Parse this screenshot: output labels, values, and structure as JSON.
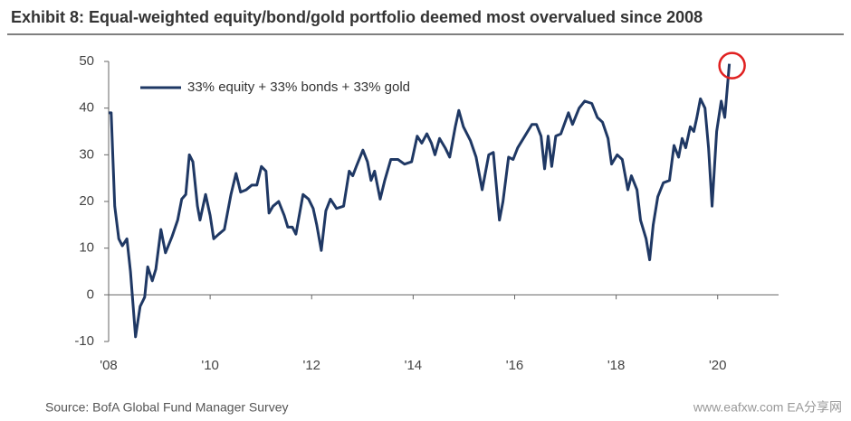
{
  "chart_data": {
    "type": "line",
    "title": "Exhibit 8: Equal-weighted equity/bond/gold portfolio deemed most overvalued since 2008",
    "source": "Source: BofA Global Fund Manager Survey",
    "watermark": "www.eafxw.com  EA分享网",
    "legend": "upper left",
    "xlim": [
      2008,
      2021.2
    ],
    "xticks": [
      {
        "value": 2008,
        "label": "'08"
      },
      {
        "value": 2010,
        "label": "'10"
      },
      {
        "value": 2012,
        "label": "'12"
      },
      {
        "value": 2014,
        "label": "'14"
      },
      {
        "value": 2016,
        "label": "'16"
      },
      {
        "value": 2018,
        "label": "'18"
      },
      {
        "value": 2020,
        "label": "'20"
      }
    ],
    "ylim": [
      -10,
      50
    ],
    "yticks": [
      -10,
      0,
      10,
      20,
      30,
      40,
      50
    ],
    "x": [
      2008.0,
      2008.05,
      2008.12,
      2008.2,
      2008.27,
      2008.36,
      2008.43,
      2008.53,
      2008.62,
      2008.71,
      2008.77,
      2008.86,
      2008.93,
      2009.03,
      2009.12,
      2009.25,
      2009.36,
      2009.44,
      2009.52,
      2009.59,
      2009.66,
      2009.75,
      2009.8,
      2009.91,
      2010.0,
      2010.07,
      2010.17,
      2010.28,
      2010.41,
      2010.51,
      2010.6,
      2010.71,
      2010.82,
      2010.92,
      2011.01,
      2011.1,
      2011.16,
      2011.24,
      2011.35,
      2011.46,
      2011.53,
      2011.62,
      2011.69,
      2011.83,
      2011.94,
      2012.03,
      2012.1,
      2012.19,
      2012.28,
      2012.37,
      2012.49,
      2012.63,
      2012.74,
      2012.81,
      2012.88,
      2013.01,
      2013.1,
      2013.17,
      2013.24,
      2013.35,
      2013.44,
      2013.56,
      2013.7,
      2013.83,
      2013.97,
      2014.08,
      2014.17,
      2014.27,
      2014.36,
      2014.43,
      2014.52,
      2014.63,
      2014.72,
      2014.83,
      2014.9,
      2014.99,
      2015.13,
      2015.24,
      2015.36,
      2015.49,
      2015.58,
      2015.7,
      2015.77,
      2015.88,
      2015.97,
      2016.06,
      2016.2,
      2016.34,
      2016.43,
      2016.52,
      2016.59,
      2016.66,
      2016.73,
      2016.81,
      2016.91,
      2017.06,
      2017.14,
      2017.27,
      2017.38,
      2017.52,
      2017.63,
      2017.73,
      2017.84,
      2017.91,
      2018.02,
      2018.12,
      2018.23,
      2018.3,
      2018.41,
      2018.48,
      2018.59,
      2018.66,
      2018.73,
      2018.82,
      2018.93,
      2019.05,
      2019.14,
      2019.23,
      2019.3,
      2019.37,
      2019.46,
      2019.53,
      2019.59,
      2019.66,
      2019.75,
      2019.82,
      2019.89,
      2019.98,
      2020.07,
      2020.14,
      2020.23
    ],
    "series": [
      {
        "name": "33% equity + 33% bonds + 33% gold",
        "color": "#1f3864",
        "values": [
          39,
          39,
          19,
          12,
          10.5,
          12,
          5,
          -9,
          -2.5,
          -0.5,
          6,
          3,
          5.5,
          14,
          9,
          12.5,
          16,
          20.5,
          21.5,
          30,
          28.5,
          19,
          16,
          21.5,
          17,
          12,
          13,
          14,
          21.5,
          26,
          22,
          22.5,
          23.5,
          23.5,
          27.5,
          26.5,
          17.5,
          19,
          20,
          17,
          14.5,
          14.5,
          13,
          21.5,
          20.5,
          18.5,
          15,
          9.5,
          18,
          20.5,
          18.5,
          19,
          26.5,
          25.5,
          27.5,
          31,
          28.5,
          24.5,
          26.5,
          20.5,
          24.5,
          29,
          29,
          28,
          28.5,
          34,
          32.5,
          34.5,
          32.5,
          30,
          33.5,
          31.5,
          29.5,
          36,
          39.5,
          36,
          33,
          29.5,
          22.5,
          30,
          30.5,
          16,
          20,
          29.5,
          29,
          31.5,
          34,
          36.5,
          36.5,
          34,
          27,
          34,
          27.5,
          34,
          34.5,
          39,
          36.5,
          40,
          41.5,
          41,
          38,
          37,
          33.5,
          28,
          30,
          29,
          22.5,
          25.5,
          22.5,
          16,
          12,
          7.5,
          15,
          21,
          24,
          24.5,
          32,
          29.5,
          33.5,
          31.5,
          36,
          35,
          38,
          42,
          40,
          31.5,
          19,
          35,
          41.5,
          38,
          49.5
        ]
      }
    ]
  }
}
